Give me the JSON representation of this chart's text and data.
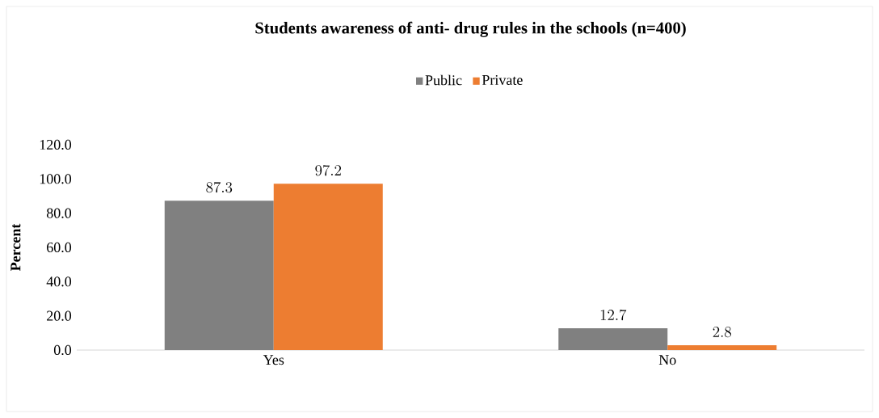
{
  "chart_data": {
    "type": "bar",
    "title": "Students awareness of anti- drug rules in the schools (n=400)",
    "ylabel": "Percent",
    "categories": [
      "Yes",
      "No"
    ],
    "series": [
      {
        "name": "Public",
        "color": "#808080",
        "values": [
          87.3,
          12.7
        ]
      },
      {
        "name": "Private",
        "color": "#ed7d31",
        "values": [
          97.2,
          2.8
        ]
      }
    ],
    "ylim": [
      0,
      120
    ],
    "yticks": [
      {
        "value": 0,
        "label": "0.0"
      },
      {
        "value": 20,
        "label": "20.0"
      },
      {
        "value": 40,
        "label": "40.0"
      },
      {
        "value": 60,
        "label": "60.0"
      },
      {
        "value": 80,
        "label": "80.0"
      },
      {
        "value": 100,
        "label": "100.0"
      },
      {
        "value": 120,
        "label": "120.0"
      }
    ],
    "data_labels": true,
    "legend": "top",
    "grid": false
  }
}
